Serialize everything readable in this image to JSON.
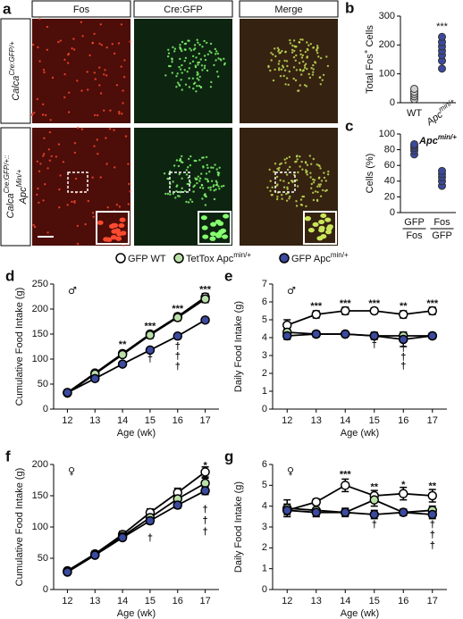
{
  "panel_a": {
    "label": "a",
    "columns": [
      "Fos",
      "Cre:GFP",
      "Merge"
    ],
    "rows": [
      [
        [
          "Calca",
          "Cre:GFP/+"
        ]
      ],
      [
        [
          "Calca",
          "Cre:GFP/+::"
        ],
        [
          "Apc",
          "Min/+"
        ]
      ]
    ]
  },
  "legend": [
    {
      "name": [
        "GFP WT"
      ],
      "color": "#ffffff"
    },
    {
      "name": [
        "TetTox Apc",
        "min/+"
      ],
      "color": "#b9e0a8"
    },
    {
      "name": [
        "GFP Apc",
        "min/+"
      ],
      "color": "#3b4a9e"
    }
  ],
  "chart_data": [
    {
      "type": "dot",
      "panel": "b",
      "ylabel": [
        "Total Fos",
        "+",
        " Cells"
      ],
      "categories": [
        [
          "WT"
        ],
        [
          "Apc",
          "min/+"
        ]
      ],
      "colors": [
        "#d0d0d0",
        "#3b4a9e"
      ],
      "values": [
        [
          12,
          22,
          30,
          38,
          48
        ],
        [
          118,
          145,
          165,
          180,
          195,
          210,
          228
        ]
      ],
      "ylim": [
        0,
        300
      ],
      "yticks": [
        0,
        100,
        200,
        300
      ],
      "annotations": [
        {
          "category": 1,
          "y": 262,
          "text": "***"
        }
      ]
    },
    {
      "type": "dot",
      "panel": "c",
      "ylabel": [
        "Cells (%)"
      ],
      "categories": [
        {
          "numerator": "GFP",
          "denominator": "Fos"
        },
        {
          "numerator": "Fos",
          "denominator": "GFP"
        }
      ],
      "colors": [
        "#3b4a9e",
        "#3b4a9e"
      ],
      "values": [
        [
          74,
          79,
          82,
          85,
          87
        ],
        [
          34,
          40,
          45,
          49,
          53
        ]
      ],
      "ylim": [
        0,
        100
      ],
      "yticks": [
        0,
        20,
        40,
        60,
        80,
        100
      ],
      "note": [
        "Apc",
        "min/+"
      ]
    },
    {
      "type": "line",
      "panel": "d",
      "symbol": "♂",
      "xlabel": "Age (wk)",
      "ylabel": "Cumulative Food Intake (g)",
      "x": [
        12,
        13,
        14,
        15,
        16,
        17
      ],
      "xlim": [
        11.5,
        17.5
      ],
      "xticks": [
        12,
        13,
        14,
        15,
        16,
        17
      ],
      "ylim": [
        0,
        250
      ],
      "yticks": [
        0,
        50,
        100,
        150,
        200,
        250
      ],
      "series": [
        {
          "color": "#ffffff",
          "values": [
            33,
            72,
            111,
            150,
            185,
            224
          ],
          "errors": [
            3,
            4,
            5,
            5,
            6,
            7
          ]
        },
        {
          "color": "#b9e0a8",
          "values": [
            32,
            70,
            109,
            148,
            183,
            220
          ],
          "errors": [
            3,
            4,
            5,
            6,
            6,
            7
          ]
        },
        {
          "color": "#3b4a9e",
          "values": [
            33,
            61,
            90,
            118,
            146,
            178
          ],
          "errors": [
            2,
            3,
            4,
            4,
            5,
            5
          ]
        }
      ],
      "annotations": [
        {
          "x": 14,
          "y": 128,
          "text": "**"
        },
        {
          "x": 15,
          "y": 165,
          "text": "***"
        },
        {
          "x": 16,
          "y": 200,
          "text": "***"
        },
        {
          "x": 17,
          "y": 238,
          "text": "***"
        },
        {
          "x": 15,
          "y": 100,
          "text": "†"
        },
        {
          "x": 16,
          "y": 125,
          "text": "†"
        },
        {
          "x": 16,
          "y": 105,
          "text": "†"
        },
        {
          "x": 16,
          "y": 85,
          "text": "†"
        }
      ]
    },
    {
      "type": "line",
      "panel": "e",
      "symbol": "♂",
      "xlabel": "Age (wk)",
      "ylabel": "Daily Food Intake (g)",
      "x": [
        12,
        13,
        14,
        15,
        16,
        17
      ],
      "xlim": [
        11.5,
        17.5
      ],
      "xticks": [
        12,
        13,
        14,
        15,
        16,
        17
      ],
      "ylim": [
        0,
        7
      ],
      "yticks": [
        0,
        1,
        2,
        3,
        4,
        5,
        6,
        7
      ],
      "series": [
        {
          "color": "#ffffff",
          "values": [
            4.7,
            5.3,
            5.5,
            5.5,
            5.3,
            5.5
          ],
          "errors": [
            0.3,
            0.2,
            0.2,
            0.15,
            0.2,
            0.2
          ]
        },
        {
          "color": "#b9e0a8",
          "values": [
            4.3,
            4.2,
            4.2,
            4.1,
            4.1,
            4.1
          ],
          "errors": [
            0.2,
            0.15,
            0.1,
            0.15,
            0.2,
            0.15
          ]
        },
        {
          "color": "#3b4a9e",
          "values": [
            4.1,
            4.2,
            4.2,
            4.1,
            3.9,
            4.1
          ],
          "errors": [
            0.2,
            0.15,
            0.1,
            0.2,
            0.4,
            0.15
          ]
        }
      ],
      "annotations": [
        {
          "x": 13,
          "y": 5.75,
          "text": "***"
        },
        {
          "x": 14,
          "y": 5.9,
          "text": "***"
        },
        {
          "x": 15,
          "y": 5.9,
          "text": "***"
        },
        {
          "x": 16,
          "y": 5.75,
          "text": "**"
        },
        {
          "x": 17,
          "y": 5.9,
          "text": "***"
        },
        {
          "x": 15,
          "y": 3.6,
          "text": "†"
        },
        {
          "x": 16,
          "y": 3.4,
          "text": "†"
        },
        {
          "x": 16,
          "y": 2.9,
          "text": "†"
        },
        {
          "x": 16,
          "y": 2.4,
          "text": "†"
        }
      ]
    },
    {
      "type": "line",
      "panel": "f",
      "symbol": "♀",
      "xlabel": "Age (wk)",
      "ylabel": "Cumulative Food Intake (g)",
      "x": [
        12,
        13,
        14,
        15,
        16,
        17
      ],
      "xlim": [
        11.5,
        17.5
      ],
      "xticks": [
        12,
        13,
        14,
        15,
        16,
        17
      ],
      "ylim": [
        0,
        200
      ],
      "yticks": [
        0,
        50,
        100,
        150,
        200
      ],
      "series": [
        {
          "color": "#ffffff",
          "values": [
            30,
            57,
            88,
            123,
            155,
            188
          ],
          "errors": [
            3,
            4,
            5,
            6,
            7,
            8
          ]
        },
        {
          "color": "#b9e0a8",
          "values": [
            28,
            55,
            85,
            115,
            145,
            170
          ],
          "errors": [
            3,
            3,
            5,
            6,
            7,
            8
          ]
        },
        {
          "color": "#3b4a9e",
          "values": [
            28,
            55,
            83,
            110,
            135,
            158
          ],
          "errors": [
            2,
            3,
            4,
            5,
            5,
            6
          ]
        }
      ],
      "annotations": [
        {
          "x": 17,
          "y": 198,
          "text": "*"
        },
        {
          "x": 15,
          "y": 82,
          "text": "†"
        },
        {
          "x": 17,
          "y": 128,
          "text": "†"
        },
        {
          "x": 17,
          "y": 110,
          "text": "†"
        },
        {
          "x": 17,
          "y": 92,
          "text": "†"
        }
      ]
    },
    {
      "type": "line",
      "panel": "g",
      "symbol": "♀",
      "xlabel": "Age (wk)",
      "ylabel": "Daily Food Intake (g)",
      "x": [
        12,
        13,
        14,
        15,
        16,
        17
      ],
      "xlim": [
        11.5,
        17.5
      ],
      "xticks": [
        12,
        13,
        14,
        15,
        16,
        17
      ],
      "ylim": [
        0,
        6
      ],
      "yticks": [
        0,
        1,
        2,
        3,
        4,
        5,
        6
      ],
      "series": [
        {
          "color": "#ffffff",
          "values": [
            3.8,
            4.2,
            5.0,
            4.5,
            4.6,
            4.5
          ],
          "errors": [
            0.3,
            0.15,
            0.3,
            0.25,
            0.3,
            0.3
          ]
        },
        {
          "color": "#b9e0a8",
          "values": [
            3.9,
            3.8,
            3.7,
            4.3,
            3.7,
            3.8
          ],
          "errors": [
            0.4,
            0.3,
            0.2,
            0.3,
            0.15,
            0.2
          ]
        },
        {
          "color": "#3b4a9e",
          "values": [
            3.8,
            3.7,
            3.7,
            3.6,
            3.7,
            3.6
          ],
          "errors": [
            0.2,
            0.2,
            0.15,
            0.2,
            0.15,
            0.2
          ]
        }
      ],
      "annotations": [
        {
          "x": 14,
          "y": 5.5,
          "text": "***"
        },
        {
          "x": 15,
          "y": 4.9,
          "text": "**"
        },
        {
          "x": 16,
          "y": 5.0,
          "text": "*"
        },
        {
          "x": 17,
          "y": 4.95,
          "text": "**"
        },
        {
          "x": 15,
          "y": 3.1,
          "text": "†"
        },
        {
          "x": 17,
          "y": 3.1,
          "text": "†"
        },
        {
          "x": 17,
          "y": 2.6,
          "text": "†"
        },
        {
          "x": 17,
          "y": 2.1,
          "text": "†"
        }
      ]
    }
  ]
}
